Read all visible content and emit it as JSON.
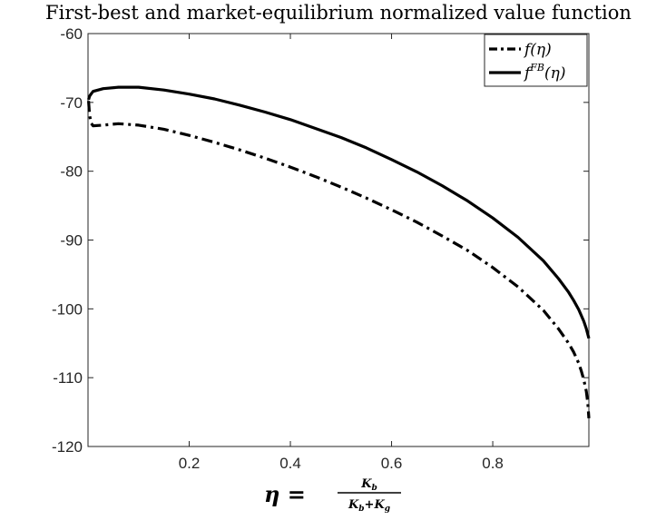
{
  "chart_data": {
    "type": "line",
    "title": "First-best and market-equilibrium normalized value function",
    "xlabel": "η = K_b / (K_b + K_g)",
    "xlabel_parts": {
      "lhs": "η",
      "eq": "=",
      "num": "K",
      "num_sub": "b",
      "den": "K",
      "den_sub1": "b",
      "den_plus": "+K",
      "den_sub2": "g"
    },
    "ylabel": "",
    "xlim": [
      0.0,
      0.99
    ],
    "ylim": [
      -120,
      -60
    ],
    "xticks": [
      0.2,
      0.4,
      0.6,
      0.8
    ],
    "xtick_labels": [
      "0.2",
      "0.4",
      "0.6",
      "0.8"
    ],
    "yticks": [
      -60,
      -70,
      -80,
      -90,
      -100,
      -110,
      -120
    ],
    "ytick_labels": [
      "-60",
      "-70",
      "-80",
      "-90",
      "-100",
      "-110",
      "-120"
    ],
    "grid": false,
    "legend": {
      "placement": "top-right",
      "entries": [
        {
          "name": "f(η)",
          "base": "f(η)",
          "sup": "",
          "style": "dashdot"
        },
        {
          "name": "f^FB(η)",
          "base": "f",
          "sup": "FB",
          "tail": "(η)",
          "style": "solid"
        }
      ]
    },
    "series": [
      {
        "name": "f(η)",
        "style": "dashdot",
        "color": "#000000",
        "x": [
          0.001,
          0.003,
          0.006,
          0.01,
          0.03,
          0.06,
          0.1,
          0.15,
          0.2,
          0.25,
          0.3,
          0.35,
          0.4,
          0.45,
          0.5,
          0.55,
          0.6,
          0.65,
          0.7,
          0.75,
          0.8,
          0.85,
          0.9,
          0.93,
          0.95,
          0.96,
          0.97,
          0.975,
          0.98,
          0.985,
          0.988,
          0.99
        ],
        "y": [
          -69.8,
          -71.8,
          -73.0,
          -73.4,
          -73.3,
          -73.1,
          -73.3,
          -73.9,
          -74.8,
          -75.8,
          -76.9,
          -78.1,
          -79.4,
          -80.8,
          -82.3,
          -83.9,
          -85.6,
          -87.4,
          -89.4,
          -91.5,
          -94.0,
          -96.8,
          -100.2,
          -102.9,
          -105.0,
          -106.3,
          -107.9,
          -109.0,
          -110.3,
          -112.0,
          -113.8,
          -115.9
        ]
      },
      {
        "name": "f^FB(η)",
        "style": "solid",
        "color": "#000000",
        "x": [
          0.001,
          0.003,
          0.006,
          0.01,
          0.03,
          0.06,
          0.08,
          0.1,
          0.15,
          0.2,
          0.25,
          0.3,
          0.35,
          0.4,
          0.45,
          0.5,
          0.55,
          0.6,
          0.65,
          0.7,
          0.75,
          0.8,
          0.85,
          0.9,
          0.93,
          0.95,
          0.96,
          0.97,
          0.98,
          0.985,
          0.99
        ],
        "y": [
          -69.6,
          -69.1,
          -68.8,
          -68.4,
          -68.0,
          -67.8,
          -67.8,
          -67.8,
          -68.2,
          -68.8,
          -69.5,
          -70.4,
          -71.4,
          -72.5,
          -73.8,
          -75.1,
          -76.6,
          -78.3,
          -80.1,
          -82.1,
          -84.3,
          -86.8,
          -89.6,
          -93.0,
          -95.6,
          -97.6,
          -98.8,
          -100.1,
          -101.8,
          -102.9,
          -104.3
        ]
      }
    ]
  }
}
